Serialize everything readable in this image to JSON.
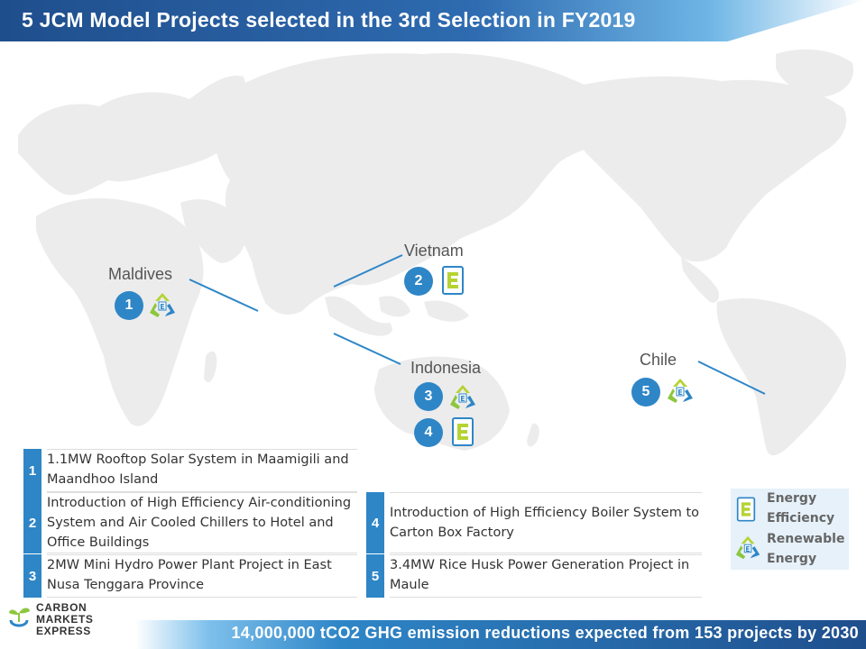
{
  "title": "5 JCM Model Projects selected in the 3rd Selection in FY2019",
  "countries": {
    "maldives": "Maldives",
    "vietnam": "Vietnam",
    "indonesia": "Indonesia",
    "chile": "Chile"
  },
  "markers": [
    "1",
    "2",
    "3",
    "4",
    "5"
  ],
  "projects": [
    {
      "num": "1",
      "text": "1.1MW Rooftop Solar System in Maamigili and Maandhoo Island"
    },
    {
      "num": "2",
      "text": "Introduction of High Efficiency Air-conditioning System and Air Cooled Chillers to Hotel and Office Buildings"
    },
    {
      "num": "3",
      "text": "2MW Mini Hydro Power Plant Project in East Nusa Tenggara Province"
    },
    {
      "num": "4",
      "text": "Introduction of High Efficiency Boiler System to Carton Box Factory"
    },
    {
      "num": "5",
      "text": "3.4MW Rice Husk Power Generation Project in Maule"
    }
  ],
  "legend": {
    "energy_efficiency": "Energy\nEfficiency",
    "renewable_energy": "Renewable\nEnergy"
  },
  "footer": "14,000,000 tCO2 GHG emission reductions expected from 153 projects by 2030",
  "logo": {
    "line1": "CARBON",
    "line2": "MARKETS",
    "line3": "EXPRESS"
  },
  "colors": {
    "accent": "#2e86c7",
    "navy": "#1f4e8c",
    "map": "#eeeeee",
    "ee_green": "#8dc63f",
    "re_green": "#b5d334"
  }
}
